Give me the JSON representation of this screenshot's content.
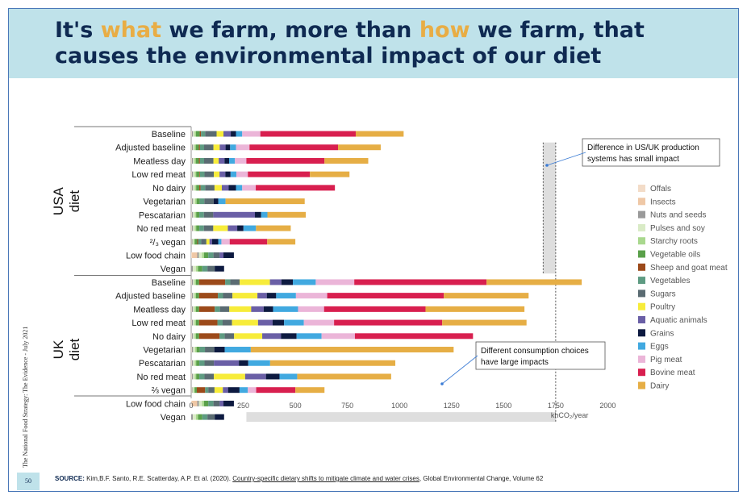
{
  "header": {
    "title_parts": [
      "It's ",
      "what",
      " we farm, more than ",
      "how",
      " we farm, that",
      "causes the environmental impact of our diet"
    ]
  },
  "side_note": "The National Food Strategy: The Evidence - July 2021",
  "page_number": "50",
  "source": {
    "label": "SOURCE:",
    "authors": " Kim,B.F.  Santo, R.E.  Scatterday, A.P. Et al. (2020). ",
    "paper": "Country-specific dietary shifts to mitigate climate and water crises",
    "journal": ", Global Environmental Change, Volume 62"
  },
  "colors": {
    "Offals": "#f3dcc8",
    "Insects": "#efc8a6",
    "Nuts and seeds": "#9a9a9a",
    "Pulses and soy": "#d9ebc6",
    "Starchy roots": "#a9d88e",
    "Vegetable oils": "#5aa04a",
    "Sheep and goat meat": "#9c4a1a",
    "Vegetables": "#5e9b82",
    "Sugars": "#5a6b72",
    "Poultry": "#f7ec3a",
    "Aquatic animals": "#6a5fa6",
    "Grains": "#0d1a40",
    "Eggs": "#41a9e0",
    "Pig meat": "#ebb5d8",
    "Bovine meat": "#d81f4f",
    "Dairy": "#e6ae45",
    "background_bar": "#dedede"
  },
  "chart_data": {
    "type": "bar",
    "orientation": "horizontal-stacked",
    "unit": "khCO₂/year",
    "xlabel": "khCO₂/year",
    "xlim": [
      0,
      2000
    ],
    "xticks": [
      0,
      250,
      500,
      750,
      1000,
      1250,
      1500,
      1750,
      2000
    ],
    "series_order": [
      "Offals",
      "Insects",
      "Nuts and seeds",
      "Pulses and soy",
      "Starchy roots",
      "Vegetable oils",
      "Sheep and goat meat",
      "Vegetables",
      "Sugars",
      "Poultry",
      "Aquatic animals",
      "Grains",
      "Eggs",
      "Pig meat",
      "Bovine meat",
      "Dairy"
    ],
    "legend": [
      "Offals",
      "Insects",
      "Nuts and seeds",
      "Pulses and soy",
      "Starchy roots",
      "Vegetable oils",
      "Sheep and goat meat",
      "Vegetables",
      "Sugars",
      "Poultry",
      "Aquatic animals",
      "Grains",
      "Eggs",
      "Pig meat",
      "Bovine meat",
      "Dairy"
    ],
    "groups": [
      {
        "label": "USA diet",
        "rows": [
          {
            "name": "Baseline",
            "segments": {
              "Offals": 3,
              "Insects": 0,
              "Nuts and seeds": 6,
              "Pulses and soy": 7,
              "Starchy roots": 7,
              "Vegetable oils": 18,
              "Sheep and goat meat": 6,
              "Vegetables": 20,
              "Sugars": 55,
              "Poultry": 33,
              "Aquatic animals": 35,
              "Grains": 25,
              "Eggs": 30,
              "Pig meat": 87,
              "Bovine meat": 458,
              "Dairy": 230
            }
          },
          {
            "name": "Adjusted baseline",
            "segments": {
              "Offals": 3,
              "Insects": 0,
              "Nuts and seeds": 6,
              "Pulses and soy": 6,
              "Starchy roots": 7,
              "Vegetable oils": 15,
              "Sheep and goat meat": 5,
              "Vegetables": 20,
              "Sugars": 45,
              "Poultry": 30,
              "Aquatic animals": 28,
              "Grains": 22,
              "Eggs": 28,
              "Pig meat": 65,
              "Bovine meat": 425,
              "Dairy": 205
            }
          },
          {
            "name": "Meatless day",
            "segments": {
              "Offals": 3,
              "Insects": 0,
              "Nuts and seeds": 6,
              "Pulses and soy": 6,
              "Starchy roots": 7,
              "Vegetable oils": 15,
              "Sheep and goat meat": 5,
              "Vegetables": 20,
              "Sugars": 45,
              "Poultry": 25,
              "Aquatic animals": 28,
              "Grains": 22,
              "Eggs": 28,
              "Pig meat": 55,
              "Bovine meat": 375,
              "Dairy": 210
            }
          },
          {
            "name": "Low red meat",
            "segments": {
              "Offals": 3,
              "Insects": 0,
              "Nuts and seeds": 6,
              "Pulses and soy": 8,
              "Starchy roots": 7,
              "Vegetable oils": 15,
              "Sheep and goat meat": 3,
              "Vegetables": 22,
              "Sugars": 45,
              "Poultry": 27,
              "Aquatic animals": 28,
              "Grains": 25,
              "Eggs": 28,
              "Pig meat": 55,
              "Bovine meat": 298,
              "Dairy": 190
            }
          },
          {
            "name": "No dairy",
            "segments": {
              "Offals": 3,
              "Insects": 0,
              "Nuts and seeds": 6,
              "Pulses and soy": 8,
              "Starchy roots": 7,
              "Vegetable oils": 15,
              "Sheep and goat meat": 6,
              "Vegetables": 22,
              "Sugars": 45,
              "Poultry": 35,
              "Aquatic animals": 33,
              "Grains": 35,
              "Eggs": 30,
              "Pig meat": 65,
              "Bovine meat": 380,
              "Dairy": 0
            }
          },
          {
            "name": "Vegetarian",
            "segments": {
              "Offals": 3,
              "Insects": 0,
              "Nuts and seeds": 6,
              "Pulses and soy": 10,
              "Starchy roots": 7,
              "Vegetable oils": 15,
              "Sheep and goat meat": 0,
              "Vegetables": 22,
              "Sugars": 45,
              "Poultry": 0,
              "Aquatic animals": 0,
              "Grains": 22,
              "Eggs": 35,
              "Pig meat": 0,
              "Bovine meat": 0,
              "Dairy": 380
            }
          },
          {
            "name": "Pescatarian",
            "segments": {
              "Offals": 3,
              "Insects": 0,
              "Nuts and seeds": 6,
              "Pulses and soy": 8,
              "Starchy roots": 7,
              "Vegetable oils": 15,
              "Sheep and goat meat": 0,
              "Vegetables": 22,
              "Sugars": 45,
              "Poultry": 0,
              "Aquatic animals": 200,
              "Grains": 30,
              "Eggs": 30,
              "Pig meat": 0,
              "Bovine meat": 0,
              "Dairy": 184
            }
          },
          {
            "name": "No red meat",
            "segments": {
              "Offals": 3,
              "Insects": 0,
              "Nuts and seeds": 6,
              "Pulses and soy": 8,
              "Starchy roots": 7,
              "Vegetable oils": 15,
              "Sheep and goat meat": 0,
              "Vegetables": 22,
              "Sugars": 45,
              "Poultry": 70,
              "Aquatic animals": 45,
              "Grains": 30,
              "Eggs": 60,
              "Pig meat": 0,
              "Bovine meat": 0,
              "Dairy": 167
            }
          },
          {
            "name": "²/₃ vegan",
            "segments": {
              "Offals": 2,
              "Insects": 0,
              "Nuts and seeds": 4,
              "Pulses and soy": 6,
              "Starchy roots": 5,
              "Vegetable oils": 12,
              "Sheep and goat meat": 4,
              "Vegetables": 15,
              "Sugars": 25,
              "Poultry": 15,
              "Aquatic animals": 12,
              "Grains": 30,
              "Eggs": 15,
              "Pig meat": 40,
              "Bovine meat": 180,
              "Dairy": 135
            }
          },
          {
            "name": "Low food chain",
            "segments": {
              "Offals": 4,
              "Insects": 25,
              "Nuts and seeds": 8,
              "Pulses and soy": 15,
              "Starchy roots": 10,
              "Vegetable oils": 20,
              "Sheep and goat meat": 0,
              "Vegetables": 25,
              "Sugars": 30,
              "Poultry": 0,
              "Aquatic animals": 18,
              "Grains": 50,
              "Eggs": 0,
              "Pig meat": 0,
              "Bovine meat": 0,
              "Dairy": 0
            }
          },
          {
            "name": "Vegan",
            "segments": {
              "Offals": 0,
              "Insects": 0,
              "Nuts and seeds": 8,
              "Pulses and soy": 15,
              "Starchy roots": 10,
              "Vegetable oils": 20,
              "Sheep and goat meat": 0,
              "Vegetables": 25,
              "Sugars": 35,
              "Poultry": 0,
              "Aquatic animals": 0,
              "Grains": 45,
              "Eggs": 0,
              "Pig meat": 0,
              "Bovine meat": 0,
              "Dairy": 0
            }
          }
        ]
      },
      {
        "label": "UK diet",
        "rows": [
          {
            "name": "Baseline",
            "segments": {
              "Offals": 3,
              "Insects": 0,
              "Nuts and seeds": 6,
              "Pulses and soy": 7,
              "Starchy roots": 7,
              "Vegetable oils": 15,
              "Sheep and goat meat": 125,
              "Vegetables": 25,
              "Sugars": 45,
              "Poultry": 145,
              "Aquatic animals": 55,
              "Grains": 55,
              "Eggs": 110,
              "Pig meat": 185,
              "Bovine meat": 635,
              "Dairy": 457
            }
          },
          {
            "name": "Adjusted baseline",
            "segments": {
              "Offals": 3,
              "Insects": 0,
              "Nuts and seeds": 6,
              "Pulses and soy": 7,
              "Starchy roots": 7,
              "Vegetable oils": 15,
              "Sheep and goat meat": 90,
              "Vegetables": 25,
              "Sugars": 45,
              "Poultry": 120,
              "Aquatic animals": 45,
              "Grains": 45,
              "Eggs": 95,
              "Pig meat": 150,
              "Bovine meat": 560,
              "Dairy": 407
            }
          },
          {
            "name": "Meatless day",
            "segments": {
              "Offals": 3,
              "Insects": 0,
              "Nuts and seeds": 6,
              "Pulses and soy": 7,
              "Starchy roots": 7,
              "Vegetable oils": 15,
              "Sheep and goat meat": 75,
              "Vegetables": 25,
              "Sugars": 45,
              "Poultry": 105,
              "Aquatic animals": 60,
              "Grains": 45,
              "Eggs": 120,
              "Pig meat": 125,
              "Bovine meat": 487,
              "Dairy": 475
            }
          },
          {
            "name": "Low red meat",
            "segments": {
              "Offals": 3,
              "Insects": 0,
              "Nuts and seeds": 6,
              "Pulses and soy": 7,
              "Starchy roots": 7,
              "Vegetable oils": 15,
              "Sheep and goat meat": 88,
              "Vegetables": 25,
              "Sugars": 45,
              "Poultry": 125,
              "Aquatic animals": 70,
              "Grains": 55,
              "Eggs": 95,
              "Pig meat": 145,
              "Bovine meat": 519,
              "Dairy": 405
            }
          },
          {
            "name": "No dairy",
            "segments": {
              "Offals": 3,
              "Insects": 0,
              "Nuts and seeds": 6,
              "Pulses and soy": 7,
              "Starchy roots": 7,
              "Vegetable oils": 15,
              "Sheep and goat meat": 98,
              "Vegetables": 25,
              "Sugars": 45,
              "Poultry": 135,
              "Aquatic animals": 90,
              "Grains": 75,
              "Eggs": 120,
              "Pig meat": 160,
              "Bovine meat": 567,
              "Dairy": 0
            }
          },
          {
            "name": "Vegetarian",
            "segments": {
              "Offals": 3,
              "Insects": 0,
              "Nuts and seeds": 6,
              "Pulses and soy": 10,
              "Starchy roots": 7,
              "Vegetable oils": 15,
              "Sheep and goat meat": 0,
              "Vegetables": 25,
              "Sugars": 45,
              "Poultry": 0,
              "Aquatic animals": 0,
              "Grains": 50,
              "Eggs": 125,
              "Pig meat": 0,
              "Bovine meat": 0,
              "Dairy": 974
            }
          },
          {
            "name": "Pescatarian",
            "segments": {
              "Offals": 3,
              "Insects": 0,
              "Nuts and seeds": 6,
              "Pulses and soy": 8,
              "Starchy roots": 7,
              "Vegetable oils": 15,
              "Sheep and goat meat": 0,
              "Vegetables": 25,
              "Sugars": 45,
              "Poultry": 0,
              "Aquatic animals": 120,
              "Grains": 45,
              "Eggs": 105,
              "Pig meat": 0,
              "Bovine meat": 0,
              "Dairy": 601
            }
          },
          {
            "name": "No red meat",
            "segments": {
              "Offals": 3,
              "Insects": 0,
              "Nuts and seeds": 6,
              "Pulses and soy": 8,
              "Starchy roots": 7,
              "Vegetable oils": 15,
              "Sheep and goat meat": 0,
              "Vegetables": 25,
              "Sugars": 45,
              "Poultry": 150,
              "Aquatic animals": 100,
              "Grains": 65,
              "Eggs": 85,
              "Pig meat": 0,
              "Bovine meat": 0,
              "Dairy": 451
            }
          },
          {
            "name": "⅔ vegan",
            "segments": {
              "Offals": 2,
              "Insects": 0,
              "Nuts and seeds": 4,
              "Pulses and soy": 6,
              "Starchy roots": 5,
              "Vegetable oils": 10,
              "Sheep and goat meat": 40,
              "Vegetables": 15,
              "Sugars": 30,
              "Poultry": 40,
              "Aquatic animals": 25,
              "Grains": 55,
              "Eggs": 40,
              "Pig meat": 40,
              "Bovine meat": 188,
              "Dairy": 140
            }
          },
          {
            "name": "Low food chain",
            "segments": {
              "Offals": 4,
              "Insects": 25,
              "Nuts and seeds": 8,
              "Pulses and soy": 15,
              "Starchy roots": 10,
              "Vegetable oils": 20,
              "Sheep and goat meat": 0,
              "Vegetables": 25,
              "Sugars": 30,
              "Poultry": 0,
              "Aquatic animals": 18,
              "Grains": 50,
              "Eggs": 0,
              "Pig meat": 0,
              "Bovine meat": 0,
              "Dairy": 0
            }
          },
          {
            "name": "Vegan",
            "segments": {
              "Offals": 0,
              "Insects": 0,
              "Nuts and seeds": 8,
              "Pulses and soy": 15,
              "Starchy roots": 10,
              "Vegetable oils": 20,
              "Sheep and goat meat": 0,
              "Vegetables": 25,
              "Sugars": 35,
              "Poultry": 0,
              "Aquatic animals": 0,
              "Grains": 45,
              "Eggs": 0,
              "Pig meat": 0,
              "Bovine meat": 0,
              "Dairy": 0
            }
          }
        ]
      }
    ],
    "annotations": [
      {
        "text_lines": [
          "Difference in US/UK production",
          "systems has small impact"
        ],
        "range": [
          1690,
          1750
        ],
        "rows": "USA Adjusted baseline to UK Baseline"
      },
      {
        "text_lines": [
          "Different consumption choices",
          "have large impacts"
        ],
        "range": [
          265,
          1750
        ],
        "rows": "UK Vegan"
      }
    ]
  }
}
